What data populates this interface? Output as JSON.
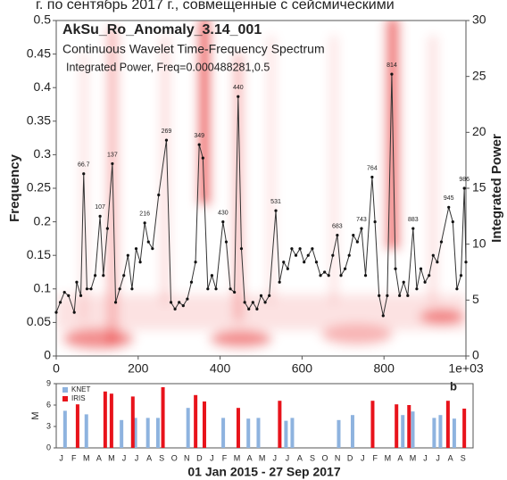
{
  "caption": "г. по сентябрь 2017 г., совмещенные с сейсмическими",
  "chart_data": [
    {
      "type": "line",
      "title": "AkSu_Ro_Anomaly_3.14_001",
      "subtitle": "Continuous Wavelet Time-Frequency Spectrum",
      "annotation": "Integrated Power, Freq=0.000488281,0.5",
      "ylabel": "Frequency",
      "y2label": "Integrated Power",
      "xlim": [
        0,
        1000
      ],
      "xticks": [
        0,
        200,
        400,
        600,
        800,
        {
          "value": 1000,
          "label": "1e+03"
        }
      ],
      "ylim": [
        0,
        0.5
      ],
      "yticks": [
        0,
        0.05,
        0.1,
        0.15,
        0.2,
        0.25,
        0.3,
        0.35,
        0.4,
        0.45,
        0.5
      ],
      "y2lim": [
        0,
        30
      ],
      "y2ticks": [
        0,
        5,
        10,
        15,
        20,
        25,
        30
      ],
      "series": [
        {
          "color": "#333333",
          "axis": "y2",
          "x": [
            0,
            10,
            20,
            30,
            44,
            50,
            60,
            67,
            75,
            85,
            95,
            107,
            115,
            125,
            137,
            145,
            155,
            165,
            175,
            185,
            195,
            205,
            216,
            225,
            235,
            250,
            269,
            280,
            290,
            300,
            310,
            320,
            330,
            340,
            349,
            358,
            370,
            380,
            390,
            407,
            415,
            425,
            435,
            444,
            452,
            460,
            470,
            480,
            490,
            500,
            510,
            520,
            536,
            545,
            555,
            565,
            575,
            585,
            595,
            605,
            615,
            625,
            635,
            645,
            655,
            665,
            675,
            686,
            695,
            705,
            715,
            725,
            735,
            745,
            755,
            771,
            778,
            788,
            798,
            808,
            819,
            828,
            838,
            848,
            858,
            871,
            880,
            890,
            900,
            910,
            920,
            930,
            940,
            958,
            968,
            978,
            988,
            996,
            1000
          ],
          "values": [
            3.9,
            4.8,
            5.7,
            5.4,
            3.9,
            6.6,
            5.4,
            16.3,
            6,
            6,
            7.2,
            12.5,
            7.2,
            11.4,
            17.2,
            4.8,
            6,
            7.2,
            9,
            6,
            9.6,
            8.4,
            11.9,
            10.2,
            9.6,
            14.4,
            19.3,
            4.8,
            4.2,
            4.8,
            4.5,
            5.1,
            6.6,
            8.4,
            18.9,
            17.7,
            6,
            7.2,
            6,
            12,
            10.2,
            6,
            5.7,
            23.2,
            9.6,
            4.8,
            4.2,
            4.8,
            4.2,
            5.4,
            4.8,
            5.4,
            13,
            6.6,
            8.4,
            7.8,
            9.6,
            9,
            9.6,
            8.4,
            9,
            9.6,
            8.4,
            7.2,
            7.5,
            7.2,
            9,
            10.8,
            7.2,
            7.8,
            9,
            10.8,
            10.2,
            11.4,
            7.2,
            16,
            12,
            5.4,
            3.6,
            5.4,
            25.2,
            7.8,
            5.4,
            6.6,
            5.4,
            11.4,
            6,
            7.8,
            6.6,
            7.2,
            9,
            8.4,
            10.2,
            13.3,
            12,
            6,
            7.2,
            15,
            8.4
          ],
          "point_labels": [
            null,
            null,
            null,
            null,
            null,
            null,
            null,
            "66.7",
            null,
            null,
            null,
            "107",
            null,
            null,
            "137",
            null,
            null,
            null,
            null,
            null,
            null,
            null,
            "216",
            null,
            null,
            null,
            "269",
            null,
            null,
            null,
            null,
            null,
            null,
            null,
            "349",
            null,
            null,
            null,
            null,
            "430",
            null,
            null,
            null,
            "440",
            null,
            null,
            null,
            null,
            null,
            null,
            null,
            null,
            "531",
            null,
            null,
            null,
            null,
            null,
            null,
            null,
            null,
            null,
            null,
            null,
            null,
            null,
            null,
            "683",
            null,
            null,
            null,
            null,
            null,
            "743",
            null,
            "764",
            null,
            null,
            null,
            null,
            "814",
            null,
            null,
            null,
            null,
            "883",
            null,
            null,
            null,
            null,
            null,
            null,
            null,
            "945",
            null,
            null,
            null,
            "986",
            null
          ]
        }
      ]
    },
    {
      "type": "bar",
      "panel_label": "b",
      "ylabel": "M",
      "xlabel": "01 Jan 2015 - 27 Sep 2017",
      "categories": [
        "J",
        "F",
        "M",
        "A",
        "M",
        "J",
        "J",
        "A",
        "S",
        "O",
        "N",
        "D",
        "J",
        "F",
        "M",
        "A",
        "M",
        "J",
        "J",
        "A",
        "S",
        "O",
        "N",
        "D",
        "J",
        "F",
        "M",
        "A",
        "M",
        "J",
        "J",
        "A",
        "S"
      ],
      "xlim": [
        -0.4,
        32.8
      ],
      "ylim": [
        0,
        9
      ],
      "yticks": [
        0,
        3,
        6,
        9
      ],
      "series": [
        {
          "name": "KNET",
          "color": "#8eb3df",
          "x": [
            0.3,
            2.0,
            4.8,
            5.9,
            6.9,
            7.7,
            10.1,
            12.9,
            14.9,
            15.7,
            17.9,
            18.4,
            22.1,
            23.2,
            27.2,
            28.0,
            29.7,
            30.2,
            31.3
          ],
          "values": [
            5.2,
            4.7,
            3.9,
            4.2,
            4.2,
            4.2,
            5.6,
            4.2,
            4.1,
            4.2,
            3.8,
            4.2,
            3.9,
            4.6,
            4.6,
            5.1,
            4.2,
            4.6,
            4.1
          ]
        },
        {
          "name": "IRIS",
          "color": "#e8131b",
          "x": [
            1.3,
            3.5,
            4.0,
            5.7,
            8.1,
            10.7,
            11.4,
            14.1,
            17.4,
            24.8,
            26.7,
            27.7,
            30.8,
            32.1
          ],
          "values": [
            6.1,
            7.9,
            7.6,
            7.2,
            8.5,
            7.4,
            6.5,
            5.6,
            6.6,
            6.6,
            6.1,
            6.0,
            6.6,
            5.5
          ]
        }
      ]
    }
  ]
}
